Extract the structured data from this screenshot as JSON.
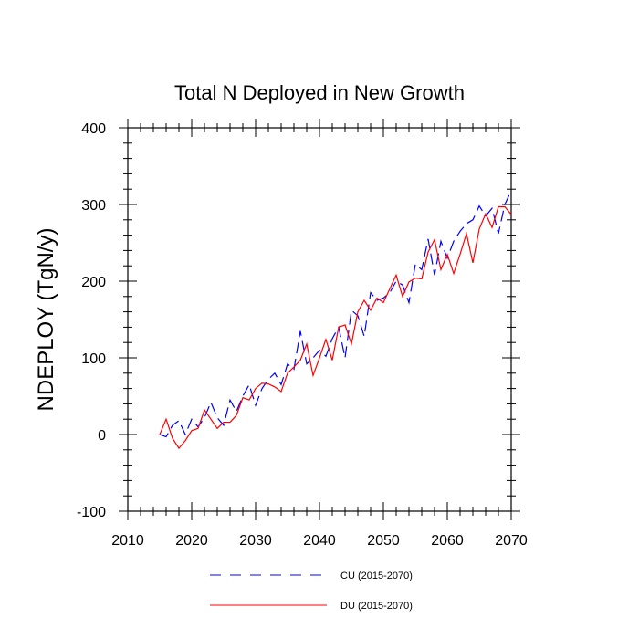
{
  "chart_data": {
    "type": "line",
    "title": "Total N Deployed in New Growth",
    "xlabel": "",
    "ylabel": "NDEPLOY  (TgN/y)",
    "xlim": [
      2010,
      2070
    ],
    "ylim": [
      -100,
      400
    ],
    "x_ticks": [
      2010,
      2020,
      2030,
      2040,
      2050,
      2060,
      2070
    ],
    "y_ticks": [
      -100,
      0,
      100,
      200,
      300,
      400
    ],
    "grid": false,
    "legend_position": "bottom",
    "x": [
      2015,
      2016,
      2017,
      2018,
      2019,
      2020,
      2021,
      2022,
      2023,
      2024,
      2025,
      2026,
      2027,
      2028,
      2029,
      2030,
      2031,
      2032,
      2033,
      2034,
      2035,
      2036,
      2037,
      2038,
      2039,
      2040,
      2041,
      2042,
      2043,
      2044,
      2045,
      2046,
      2047,
      2048,
      2049,
      2050,
      2051,
      2052,
      2053,
      2054,
      2055,
      2056,
      2057,
      2058,
      2059,
      2060,
      2061,
      2062,
      2063,
      2064,
      2065,
      2066,
      2067,
      2068,
      2069,
      2070
    ],
    "series": [
      {
        "name": "CU (2015-2070)",
        "color": "#0000ff",
        "dash": "dashed",
        "values": [
          0,
          -3,
          12,
          18,
          0,
          20,
          10,
          22,
          42,
          22,
          12,
          45,
          30,
          50,
          65,
          38,
          60,
          72,
          80,
          65,
          92,
          85,
          135,
          92,
          100,
          110,
          102,
          125,
          140,
          100,
          162,
          155,
          128,
          185,
          175,
          178,
          185,
          200,
          195,
          172,
          222,
          215,
          255,
          208,
          252,
          230,
          252,
          265,
          275,
          280,
          298,
          285,
          295,
          262,
          300,
          318
        ]
      },
      {
        "name": "DU (2015-2070)",
        "color": "#ff0000",
        "dash": "solid",
        "values": [
          0,
          20,
          -5,
          -18,
          -8,
          5,
          8,
          32,
          20,
          8,
          16,
          16,
          25,
          48,
          45,
          60,
          67,
          66,
          62,
          56,
          80,
          88,
          97,
          118,
          77,
          100,
          124,
          97,
          140,
          143,
          118,
          160,
          175,
          162,
          178,
          172,
          190,
          208,
          180,
          199,
          204,
          203,
          238,
          254,
          215,
          235,
          210,
          235,
          262,
          224,
          268,
          288,
          270,
          297,
          297,
          287
        ]
      }
    ]
  }
}
